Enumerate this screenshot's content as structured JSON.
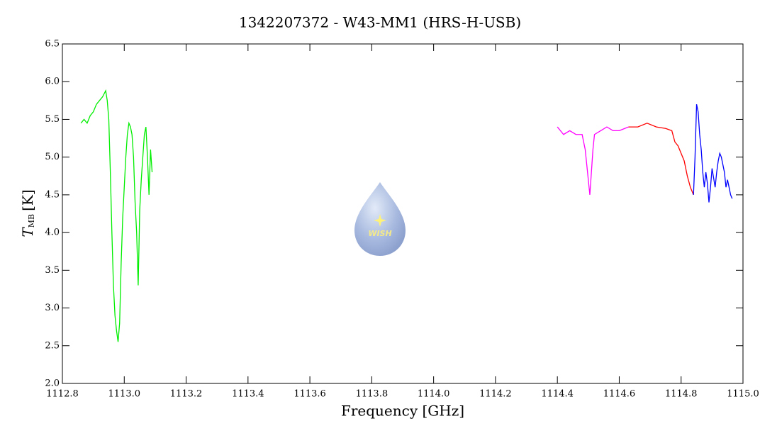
{
  "chart_data": {
    "type": "line",
    "title": "1342207372 - W43-MM1 (HRS-H-USB)",
    "xlabel": "Frequency [GHz]",
    "ylabel": {
      "symbol": "T",
      "subscript": "MB",
      "unit": "[K]"
    },
    "logo_text": "WISH",
    "xlim": [
      1112.8,
      1115.0
    ],
    "ylim": [
      2.0,
      6.5
    ],
    "xticks": [
      1112.8,
      {
        "value": 1113.0,
        "label": "1113.0"
      },
      1113.2,
      1113.4,
      1113.6,
      1113.8,
      {
        "value": 1114.0,
        "label": "1114.0"
      },
      1114.2,
      1114.4,
      1114.6,
      1114.8,
      {
        "value": 1115.0,
        "label": "1115.0"
      }
    ],
    "yticks": [
      {
        "value": 2.0,
        "label": "2.0"
      },
      2.5,
      {
        "value": 3.0,
        "label": "3.0"
      },
      3.5,
      {
        "value": 4.0,
        "label": "4.0"
      },
      4.5,
      {
        "value": 5.0,
        "label": "5.0"
      },
      5.5,
      {
        "value": 6.0,
        "label": "6.0"
      },
      6.5
    ],
    "series": [
      {
        "color": "#00ee00",
        "x": [
          1112.86,
          1112.87,
          1112.88,
          1112.89,
          1112.9,
          1112.91,
          1112.92,
          1112.93,
          1112.94,
          1112.945,
          1112.95,
          1112.955,
          1112.96,
          1112.965,
          1112.97,
          1112.975,
          1112.98,
          1112.985,
          1112.99,
          1112.995,
          1113.0,
          1113.005,
          1113.01,
          1113.015,
          1113.02,
          1113.025,
          1113.03,
          1113.035,
          1113.04,
          1113.045,
          1113.05,
          1113.055,
          1113.06,
          1113.065,
          1113.07,
          1113.075,
          1113.08,
          1113.085,
          1113.09
        ],
        "values": [
          5.45,
          5.5,
          5.45,
          5.55,
          5.6,
          5.7,
          5.75,
          5.8,
          5.88,
          5.75,
          5.5,
          4.8,
          4.0,
          3.3,
          2.9,
          2.7,
          2.55,
          2.8,
          3.6,
          4.2,
          4.6,
          5.0,
          5.3,
          5.45,
          5.4,
          5.3,
          5.0,
          4.4,
          4.0,
          3.3,
          4.3,
          4.7,
          5.0,
          5.3,
          5.4,
          5.0,
          4.5,
          5.1,
          4.8
        ]
      },
      {
        "color": "#ff00ff",
        "x": [
          1114.4,
          1114.42,
          1114.44,
          1114.46,
          1114.48,
          1114.49,
          1114.5,
          1114.505,
          1114.51,
          1114.515,
          1114.52,
          1114.54,
          1114.56,
          1114.58,
          1114.6,
          1114.63
        ],
        "values": [
          5.4,
          5.3,
          5.35,
          5.3,
          5.3,
          5.1,
          4.7,
          4.5,
          4.8,
          5.1,
          5.3,
          5.35,
          5.4,
          5.35,
          5.35,
          5.4
        ]
      },
      {
        "color": "#ff0000",
        "x": [
          1114.63,
          1114.66,
          1114.69,
          1114.72,
          1114.75,
          1114.77,
          1114.78,
          1114.79,
          1114.8,
          1114.81,
          1114.82,
          1114.83,
          1114.84
        ],
        "values": [
          5.4,
          5.4,
          5.45,
          5.4,
          5.38,
          5.35,
          5.2,
          5.15,
          5.05,
          4.95,
          4.75,
          4.6,
          4.5
        ]
      },
      {
        "color": "#0000ff",
        "x": [
          1114.84,
          1114.845,
          1114.85,
          1114.855,
          1114.86,
          1114.865,
          1114.87,
          1114.875,
          1114.88,
          1114.885,
          1114.89,
          1114.895,
          1114.9,
          1114.91,
          1114.915,
          1114.92,
          1114.925,
          1114.93,
          1114.935,
          1114.94,
          1114.945,
          1114.95,
          1114.96,
          1114.965
        ],
        "values": [
          4.5,
          5.0,
          5.7,
          5.6,
          5.3,
          5.1,
          4.8,
          4.6,
          4.8,
          4.65,
          4.4,
          4.6,
          4.85,
          4.6,
          4.8,
          4.95,
          5.05,
          5.0,
          4.9,
          4.8,
          4.6,
          4.7,
          4.5,
          4.45
        ]
      }
    ]
  }
}
